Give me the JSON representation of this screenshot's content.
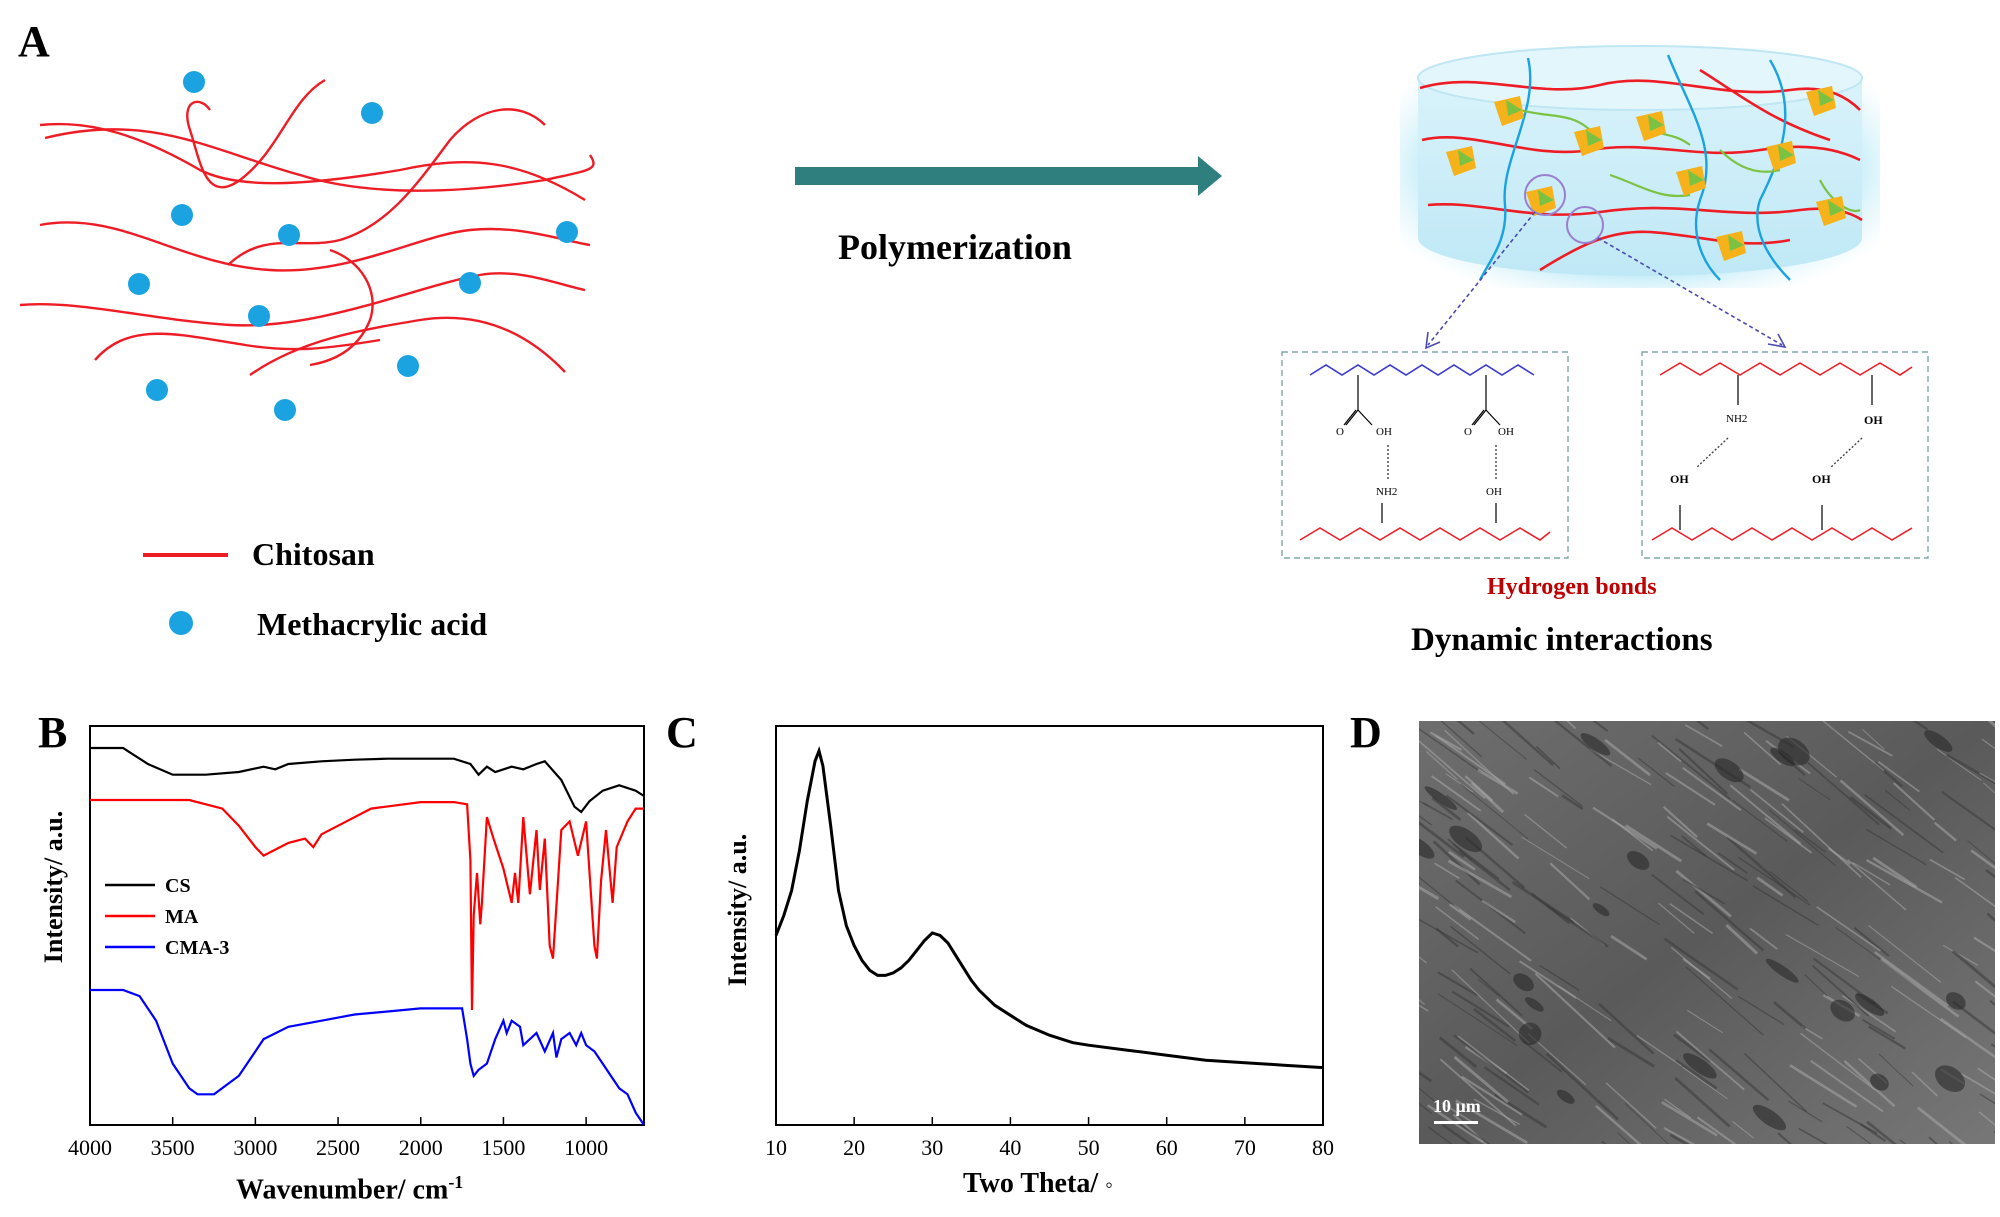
{
  "panels": {
    "A": "A",
    "B": "B",
    "C": "C",
    "D": "D"
  },
  "scheme": {
    "arrow_label": "Polymerization",
    "legend": {
      "chitosan": "Chitosan",
      "methacrylic_acid": "Methacrylic acid"
    },
    "hbond_label": "Hydrogen bonds",
    "dynamic_label": "Dynamic interactions",
    "chem": {
      "oh": "OH",
      "nh2": "NH2",
      "o": "O"
    },
    "colors": {
      "chitosan": "#ee1c25",
      "monomer": "#1aa3e0",
      "arrow": "#2f7f7f",
      "hbond_text": "#c00000",
      "pma": "#3b3bd6",
      "box": "#7fa8a8"
    }
  },
  "sem": {
    "scale_bar": "10 μm"
  },
  "chart_data": [
    {
      "type": "line",
      "panel": "B",
      "xlabel": "Wavenumber/ cm",
      "xlabel_sup": "-1",
      "ylabel": "Intensity/ a.u.",
      "xlim": [
        4000,
        650
      ],
      "x_reversed": true,
      "xticks": [
        "4000",
        "3500",
        "3000",
        "2500",
        "2000",
        "1500",
        "1000"
      ],
      "legend_position": "left",
      "series": [
        {
          "name": "CS",
          "color": "#000000",
          "x": [
            4000,
            3800,
            3650,
            3500,
            3300,
            3100,
            2950,
            2880,
            2800,
            2600,
            2400,
            2200,
            2000,
            1800,
            1700,
            1650,
            1600,
            1550,
            1450,
            1380,
            1300,
            1250,
            1150,
            1070,
            1030,
            980,
            900,
            800,
            700,
            650
          ],
          "y": [
            92,
            92,
            89,
            87,
            87,
            87.5,
            88.5,
            88,
            89,
            89.5,
            89.8,
            90,
            90,
            90,
            89,
            87,
            88.5,
            87.5,
            88.5,
            88,
            89,
            89.5,
            86,
            81,
            80,
            82,
            84,
            85,
            84,
            83
          ]
        },
        {
          "name": "MA",
          "color": "#ff0000",
          "x": [
            4000,
            3400,
            3200,
            3100,
            3000,
            2950,
            2900,
            2800,
            2700,
            2650,
            2600,
            2500,
            2300,
            2000,
            1800,
            1720,
            1700,
            1690,
            1680,
            1660,
            1640,
            1630,
            1600,
            1560,
            1500,
            1450,
            1430,
            1410,
            1380,
            1340,
            1300,
            1280,
            1250,
            1220,
            1200,
            1150,
            1100,
            1050,
            1000,
            950,
            935,
            910,
            880,
            840,
            815,
            750,
            700,
            650
          ],
          "y": [
            79,
            79,
            77,
            73,
            68,
            66,
            67,
            69,
            70,
            68,
            71,
            73,
            77,
            78.5,
            78.5,
            78,
            65,
            30,
            52,
            62,
            50,
            55,
            75,
            70,
            63,
            55,
            62,
            55,
            75,
            57,
            72,
            58,
            70,
            45,
            42,
            72,
            74,
            66,
            74,
            45,
            42,
            60,
            72,
            55,
            68,
            74,
            77,
            77
          ]
        },
        {
          "name": "CMA-3",
          "color": "#0000ff",
          "x": [
            4000,
            3800,
            3700,
            3600,
            3500,
            3400,
            3350,
            3250,
            3100,
            3000,
            2950,
            2800,
            2600,
            2400,
            2200,
            2000,
            1800,
            1750,
            1720,
            1700,
            1680,
            1650,
            1600,
            1550,
            1500,
            1480,
            1450,
            1400,
            1380,
            1300,
            1250,
            1200,
            1180,
            1150,
            1100,
            1060,
            1030,
            1000,
            950,
            900,
            850,
            800,
            750,
            700,
            650
          ],
          "y": [
            52,
            52,
            51,
            47,
            40,
            36,
            35,
            35,
            38,
            42,
            44,
            46,
            47,
            48,
            48.5,
            49,
            49,
            49,
            44,
            40,
            38,
            39,
            40,
            44,
            47,
            45,
            47,
            46,
            43,
            45,
            42,
            45,
            41,
            44,
            45,
            43,
            45,
            43,
            42,
            40,
            38,
            36,
            35,
            32,
            30
          ]
        }
      ]
    },
    {
      "type": "line",
      "panel": "C",
      "xlabel": "Two Theta/",
      "xlabel_suffix": "◦",
      "ylabel": "Intensity/ a.u.",
      "xlim": [
        10,
        80
      ],
      "xticks": [
        "10",
        "20",
        "30",
        "40",
        "50",
        "60",
        "70",
        "80"
      ],
      "series": [
        {
          "color": "#000000",
          "x": [
            10,
            11,
            12,
            13,
            14,
            15,
            15.5,
            16,
            17,
            18,
            19,
            20,
            21,
            22,
            23,
            24,
            25,
            26,
            27,
            28,
            29,
            30,
            31,
            32,
            33,
            34,
            35,
            36,
            37,
            38,
            40,
            42,
            45,
            48,
            50,
            55,
            60,
            65,
            70,
            75,
            80
          ],
          "y": [
            58,
            62,
            67,
            75,
            85,
            93,
            95,
            92,
            80,
            67,
            60,
            56,
            53,
            51,
            50,
            50,
            50.5,
            51.5,
            53,
            55,
            57,
            58.5,
            58,
            56.5,
            54,
            51.5,
            49,
            47,
            45.5,
            44,
            42,
            40,
            38,
            36.5,
            36,
            35,
            34,
            33,
            32.5,
            32,
            31.5
          ]
        }
      ]
    }
  ]
}
